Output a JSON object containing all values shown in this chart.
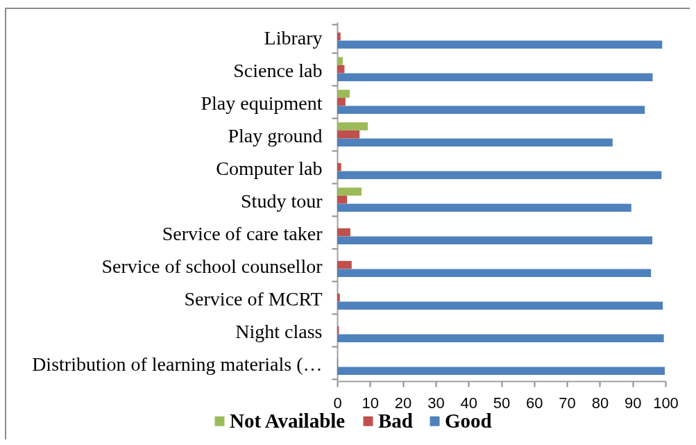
{
  "chart_data": {
    "type": "bar",
    "orientation": "horizontal",
    "categories": [
      "Library",
      "Science lab",
      "Play equipment",
      "Play ground",
      "Computer lab",
      "Study tour",
      "Service of care taker",
      "Service of school counsellor",
      "Service of MCRT",
      "Night class",
      "Distribution of learning materials (…"
    ],
    "series": [
      {
        "name": "Not Available",
        "color": "#9bbb59",
        "values": [
          0,
          1.7,
          3.8,
          9.3,
          0,
          7.4,
          0,
          0,
          0,
          0,
          0
        ]
      },
      {
        "name": "Bad",
        "color": "#c0504d",
        "values": [
          1,
          2.2,
          2.5,
          6.8,
          1.2,
          3,
          4,
          4.4,
          0.8,
          0.5,
          0.2
        ]
      },
      {
        "name": "Good",
        "color": "#4f81bd",
        "values": [
          99,
          96.1,
          93.7,
          83.9,
          98.8,
          89.6,
          96,
          95.6,
          99.2,
          99.5,
          99.8
        ]
      }
    ],
    "xlim": [
      0,
      100
    ],
    "xticks": [
      0,
      10,
      20,
      30,
      40,
      50,
      60,
      70,
      80,
      90,
      100
    ],
    "legend": "bottom"
  }
}
